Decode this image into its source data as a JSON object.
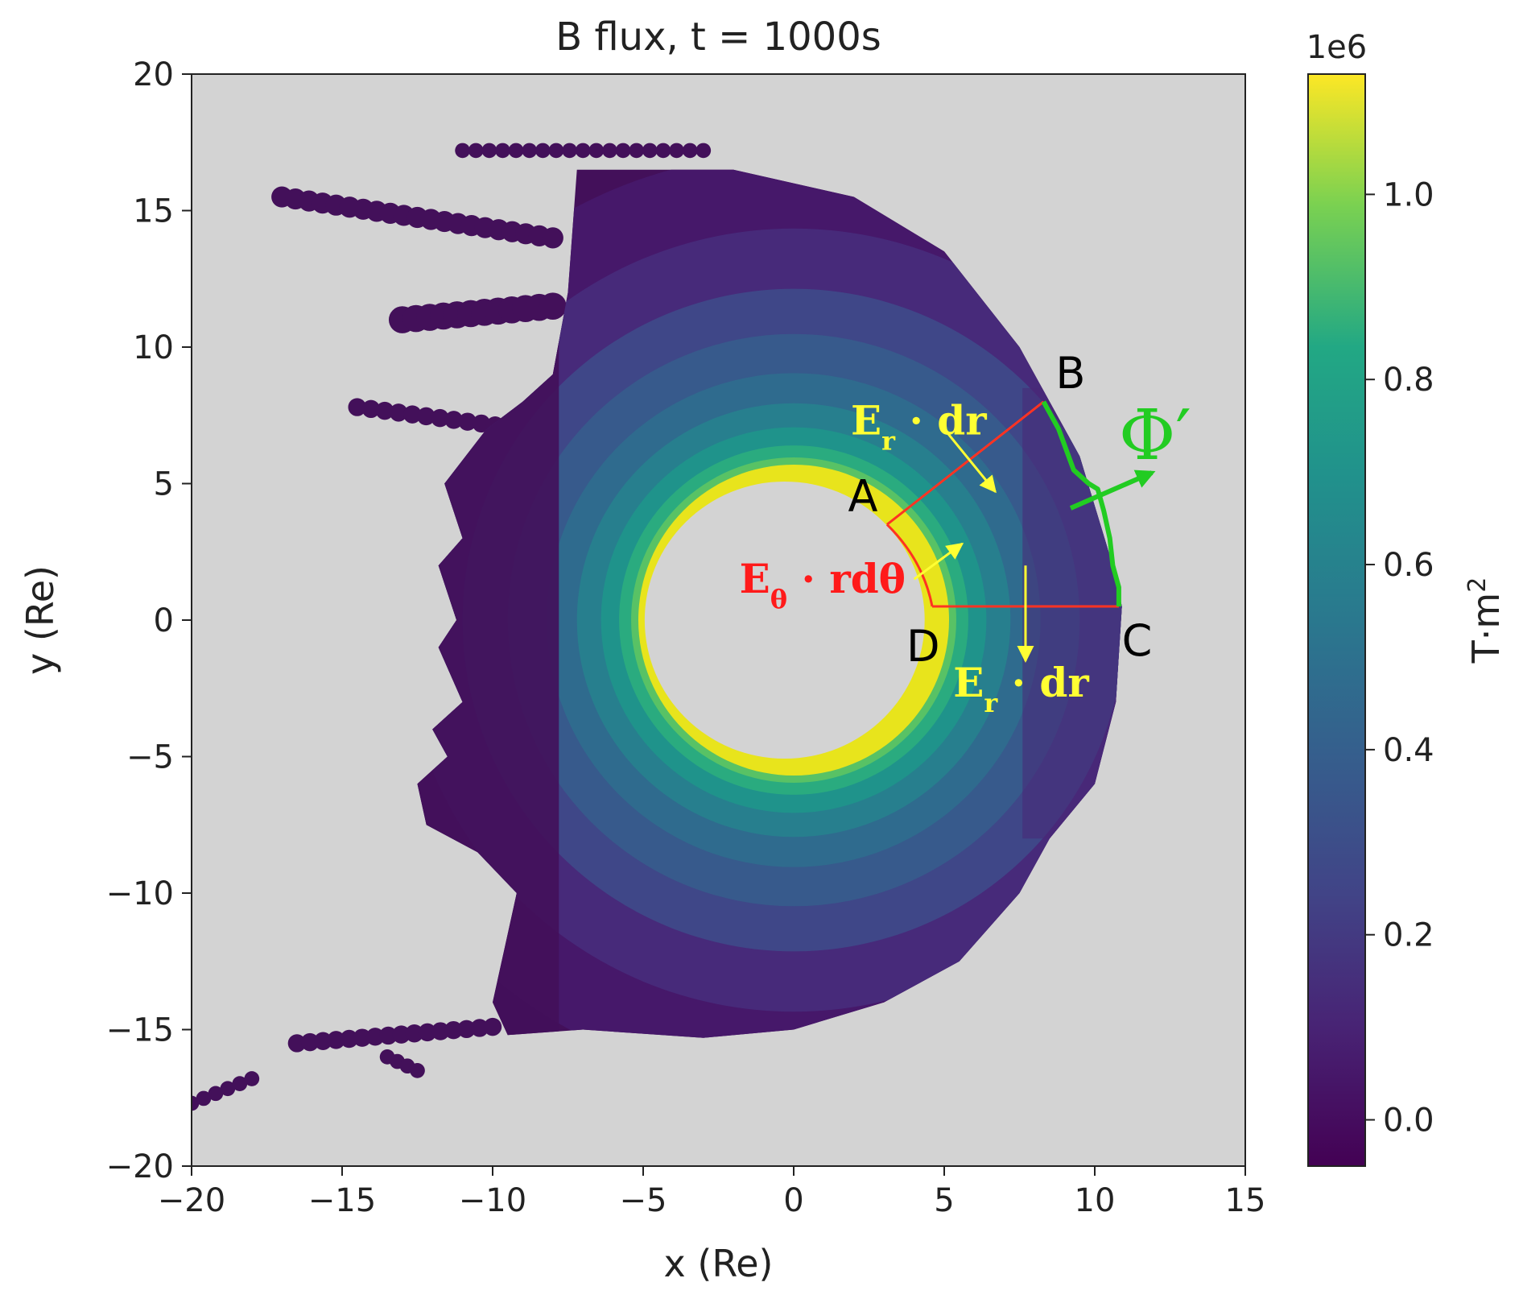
{
  "chart_data": {
    "type": "heatmap",
    "title": "B flux, t = 1000s",
    "xlabel": "x (Re)",
    "ylabel": "y (Re)",
    "xlim": [
      -20,
      15
    ],
    "ylim": [
      -20,
      20
    ],
    "xticks": [
      "−20",
      "−15",
      "−10",
      "−5",
      "0",
      "5",
      "10",
      "15"
    ],
    "xtick_values": [
      -20,
      -15,
      -10,
      -5,
      0,
      5,
      10,
      15
    ],
    "yticks": [
      "20",
      "15",
      "10",
      "5",
      "0",
      "−5",
      "−10",
      "−15",
      "−20"
    ],
    "ytick_values": [
      20,
      15,
      10,
      5,
      0,
      -5,
      -10,
      -15,
      -20
    ],
    "colorbar": {
      "label": "T·m²",
      "label_base": "T·m",
      "label_exp": "2",
      "offset_text": "1e6",
      "range": [
        -0.05,
        1.13
      ],
      "ticks": [
        "0.0",
        "0.2",
        "0.4",
        "0.6",
        "0.8",
        "1.0"
      ],
      "tick_values": [
        0.0,
        0.2,
        0.4,
        0.6,
        0.8,
        1.0
      ],
      "colormap": "viridis"
    },
    "background_color": "#d3d3d3",
    "grid": false,
    "inner_boundary_radius": 5,
    "points": {
      "A": {
        "label": "A",
        "x": 3.1,
        "y": 3.5
      },
      "B": {
        "label": "B",
        "x": 8.3,
        "y": 8.0
      },
      "C": {
        "label": "C",
        "x": 10.8,
        "y": 0.5
      },
      "D": {
        "label": "D",
        "x": 4.6,
        "y": 0.5
      }
    },
    "annotations": {
      "er_dr_top": {
        "text_main": "E",
        "text_sub": "r",
        "text_rest": " · dr",
        "color": "#ffff33"
      },
      "er_dr_bottom": {
        "text_main": "E",
        "text_sub": "r",
        "text_rest": " · dr",
        "color": "#ffff33"
      },
      "etheta": {
        "text_main": "E",
        "text_sub": "θ",
        "text_rest": " · rdθ",
        "color": "#ff1a1a"
      },
      "phi": {
        "text": "Φ′",
        "color": "#22cc22"
      }
    }
  }
}
